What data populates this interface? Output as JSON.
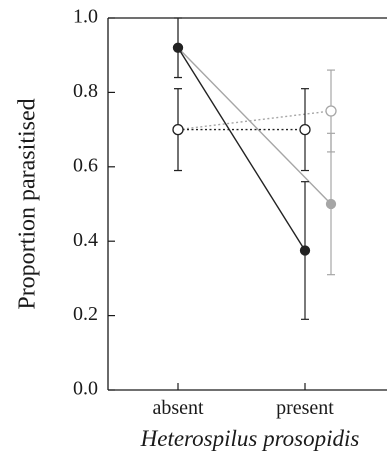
{
  "chart_data": {
    "type": "line",
    "title": "",
    "xlabel": "Heterospilus prosopidis",
    "ylabel": "Proportion parasitised",
    "categories": [
      "absent",
      "present"
    ],
    "ylim": [
      0,
      1.0
    ],
    "yticks": [
      "0.0",
      "0.2",
      "0.4",
      "0.6",
      "0.8",
      "1.0"
    ],
    "grid": false,
    "legend": "none",
    "series": [
      {
        "marker": "filled",
        "line_style": "solid",
        "color": "#222222",
        "points": [
          {
            "category": "absent",
            "y": 0.92,
            "lower": 0.84,
            "upper": 1.0
          },
          {
            "category": "present",
            "y": 0.375,
            "lower": 0.19,
            "upper": 0.56
          }
        ]
      },
      {
        "marker": "open",
        "line_style": "dotted",
        "color": "#222222",
        "points": [
          {
            "category": "absent",
            "y": 0.7,
            "lower": 0.59,
            "upper": 0.81
          },
          {
            "category": "present",
            "y": 0.7,
            "lower": 0.59,
            "upper": 0.81
          }
        ]
      },
      {
        "marker": "filled",
        "line_style": "solid",
        "color": "#a6a6a6",
        "points": [
          {
            "category": "absent",
            "y": 0.92,
            "lower": 0.84,
            "upper": 1.0
          },
          {
            "category": "present",
            "y": 0.5,
            "lower": 0.31,
            "upper": 0.69
          }
        ]
      },
      {
        "marker": "open",
        "line_style": "dotted",
        "color": "#a6a6a6",
        "points": [
          {
            "category": "absent",
            "y": 0.7,
            "lower": 0.59,
            "upper": 0.81
          },
          {
            "category": "present",
            "y": 0.75,
            "lower": 0.64,
            "upper": 0.86
          }
        ]
      }
    ]
  }
}
